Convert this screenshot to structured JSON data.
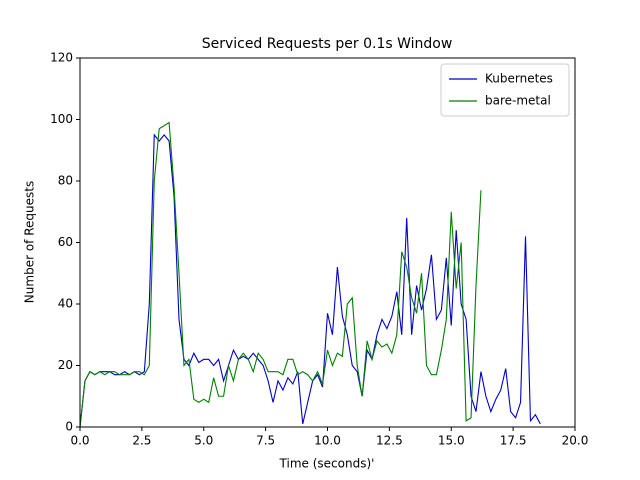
{
  "chart_data": {
    "type": "line",
    "title": "Serviced Requests per 0.1s Window",
    "x_label": "Time (seconds)'",
    "y_label": "Number of Requests",
    "x": [
      0,
      0.2,
      0.4,
      0.6,
      0.8,
      1.0,
      1.2,
      1.4,
      1.6,
      1.8,
      2.0,
      2.2,
      2.4,
      2.6,
      2.8,
      3.0,
      3.2,
      3.4,
      3.6,
      3.8,
      4.0,
      4.2,
      4.4,
      4.6,
      4.8,
      5.0,
      5.2,
      5.4,
      5.6,
      5.8,
      6.0,
      6.2,
      6.4,
      6.6,
      6.8,
      7.0,
      7.2,
      7.4,
      7.6,
      7.8,
      8.0,
      8.2,
      8.4,
      8.6,
      8.8,
      9.0,
      9.2,
      9.4,
      9.6,
      9.8,
      10.0,
      10.2,
      10.4,
      10.6,
      10.8,
      11.0,
      11.2,
      11.4,
      11.6,
      11.8,
      12.0,
      12.2,
      12.4,
      12.6,
      12.8,
      13.0,
      13.2,
      13.4,
      13.6,
      13.8,
      14.0,
      14.2,
      14.4,
      14.6,
      14.8,
      15.0,
      15.2,
      15.4,
      15.6,
      15.8,
      16.0,
      16.2,
      16.4,
      16.6,
      16.8,
      17.0,
      17.2,
      17.4,
      17.6,
      17.8,
      18.0,
      18.2,
      18.4,
      18.6
    ],
    "series": [
      {
        "name": "Kubernetes",
        "color": "#0000cc",
        "values": [
          0,
          15,
          18,
          17,
          18,
          18,
          18,
          17,
          17,
          18,
          17,
          18,
          17,
          18,
          40,
          95,
          93,
          95,
          93,
          75,
          35,
          22,
          20,
          24,
          21,
          22,
          22,
          20,
          22,
          15,
          20,
          25,
          22,
          23,
          22,
          24,
          22,
          20,
          15,
          8,
          15,
          12,
          16,
          14,
          18,
          1,
          8,
          15,
          17,
          13,
          37,
          30,
          52,
          36,
          30,
          20,
          18,
          10,
          25,
          22,
          30,
          35,
          32,
          36,
          44,
          30,
          68,
          30,
          46,
          38,
          45,
          56,
          35,
          38,
          55,
          33,
          64,
          40,
          35,
          10,
          5,
          18,
          10,
          5,
          9,
          12,
          19,
          5,
          3,
          8,
          62,
          2,
          4,
          1
        ]
      },
      {
        "name": "bare-metal",
        "color": "#008000",
        "values": [
          0,
          15,
          18,
          17,
          18,
          17,
          18,
          18,
          17,
          17,
          17,
          18,
          18,
          17,
          20,
          80,
          97,
          98,
          99,
          78,
          50,
          20,
          22,
          9,
          8,
          9,
          8,
          16,
          10,
          10,
          20,
          15,
          22,
          24,
          22,
          18,
          24,
          22,
          18,
          18,
          18,
          17,
          22,
          22,
          17,
          18,
          17,
          15,
          18,
          14,
          25,
          20,
          24,
          23,
          40,
          42,
          20,
          10,
          28,
          22,
          28,
          26,
          27,
          24,
          30,
          57,
          52,
          42,
          37,
          50,
          20,
          17,
          17,
          25,
          35,
          70,
          45,
          60,
          2,
          3,
          46,
          77,
          null,
          null,
          null,
          null,
          null,
          null,
          null,
          null,
          null,
          null,
          null,
          null
        ]
      }
    ],
    "xlim": [
      0,
      20
    ],
    "ylim": [
      0,
      120
    ],
    "xticks": [
      {
        "value": 0,
        "label": "0.0"
      },
      {
        "value": 2.5,
        "label": "2.5"
      },
      {
        "value": 5,
        "label": "5.0"
      },
      {
        "value": 7.5,
        "label": "7.5"
      },
      {
        "value": 10,
        "label": "10.0"
      },
      {
        "value": 12.5,
        "label": "12.5"
      },
      {
        "value": 15,
        "label": "15.0"
      },
      {
        "value": 17.5,
        "label": "17.5"
      },
      {
        "value": 20,
        "label": "20.0"
      }
    ],
    "yticks": [
      0,
      20,
      40,
      60,
      80,
      100,
      120
    ],
    "legend": "upper right"
  }
}
